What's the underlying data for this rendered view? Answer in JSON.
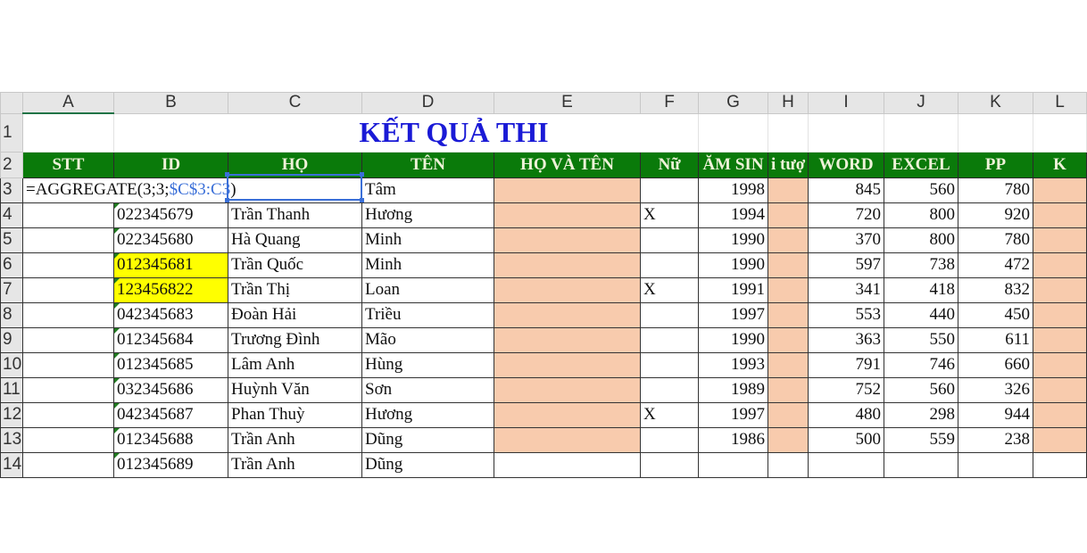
{
  "columns": [
    "A",
    "B",
    "C",
    "D",
    "E",
    "F",
    "G",
    "H",
    "I",
    "J",
    "K",
    "L"
  ],
  "title": "KẾT QUẢ THI",
  "headers": [
    "STT",
    "ID",
    "HỌ",
    "TÊN",
    "HỌ VÀ TÊN",
    "Nữ",
    "ĂM SIN",
    "i tượ",
    "WORD",
    "EXCEL",
    "PP",
    "K"
  ],
  "formula": {
    "prefix": "=AGGREGATE(3;3;",
    "ref": "$C$3:C3",
    "suffix": ")"
  },
  "rows": [
    {
      "n": "3",
      "id": "",
      "ho": "",
      "ten": "Tâm",
      "nu": "",
      "nam": "1998",
      "word": "845",
      "excel": "560",
      "pp": "780"
    },
    {
      "n": "4",
      "id": "022345679",
      "ho": "Trần Thanh",
      "ten": "Hương",
      "nu": "X",
      "nam": "1994",
      "word": "720",
      "excel": "800",
      "pp": "920"
    },
    {
      "n": "5",
      "id": "022345680",
      "ho": "Hà Quang",
      "ten": "Minh",
      "nu": "",
      "nam": "1990",
      "word": "370",
      "excel": "800",
      "pp": "780"
    },
    {
      "n": "6",
      "id": "012345681",
      "ho": "Trần Quốc",
      "ten": "Minh",
      "nu": "",
      "nam": "1990",
      "word": "597",
      "excel": "738",
      "pp": "472",
      "hl": true
    },
    {
      "n": "7",
      "id": "123456822",
      "ho": "Trần Thị",
      "ten": "Loan",
      "nu": "X",
      "nam": "1991",
      "word": "341",
      "excel": "418",
      "pp": "832",
      "hl": true
    },
    {
      "n": "8",
      "id": "042345683",
      "ho": "Đoàn Hải",
      "ten": "Triều",
      "nu": "",
      "nam": "1997",
      "word": "553",
      "excel": "440",
      "pp": "450"
    },
    {
      "n": "9",
      "id": "012345684",
      "ho": "Trương Đình",
      "ten": "Mão",
      "nu": "",
      "nam": "1990",
      "word": "363",
      "excel": "550",
      "pp": "611"
    },
    {
      "n": "10",
      "id": "012345685",
      "ho": "Lâm Anh",
      "ten": "Hùng",
      "nu": "",
      "nam": "1993",
      "word": "791",
      "excel": "746",
      "pp": "660"
    },
    {
      "n": "11",
      "id": "032345686",
      "ho": "Huỳnh Văn",
      "ten": "Sơn",
      "nu": "",
      "nam": "1989",
      "word": "752",
      "excel": "560",
      "pp": "326"
    },
    {
      "n": "12",
      "id": "042345687",
      "ho": "Phan Thuỳ",
      "ten": "Hương",
      "nu": "X",
      "nam": "1997",
      "word": "480",
      "excel": "298",
      "pp": "944"
    },
    {
      "n": "13",
      "id": "012345688",
      "ho": "Trần Anh",
      "ten": "Dũng",
      "nu": "",
      "nam": "1986",
      "word": "500",
      "excel": "559",
      "pp": "238"
    },
    {
      "n": "14",
      "id": "012345689",
      "ho": "Trần Anh",
      "ten": "Dũng",
      "nu": "",
      "nam": "",
      "word": "",
      "excel": "",
      "pp": "",
      "partial": true
    }
  ],
  "colors": {
    "header_green": "#0a7a0a",
    "title_blue": "#1a1ad6",
    "peach": "#f8cbad",
    "highlight": "#ffff00"
  }
}
